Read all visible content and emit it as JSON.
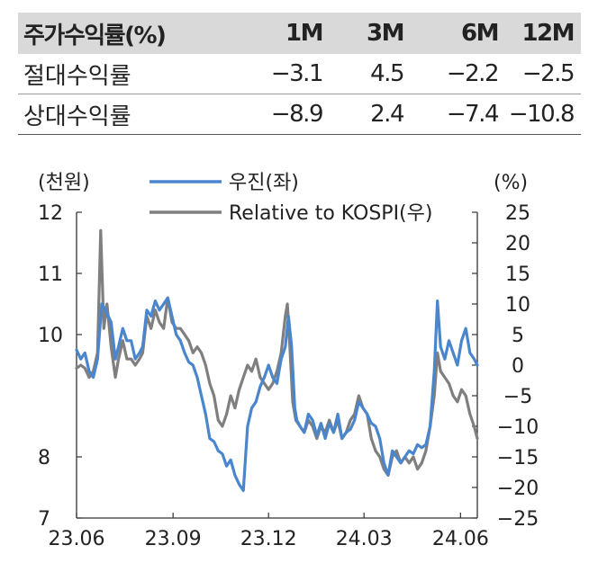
{
  "table": {
    "header": [
      "주가수익률(%)",
      "1M",
      "3M",
      "6M",
      "12M"
    ],
    "rows": [
      {
        "label": "절대수익률",
        "values": [
          "−3.1",
          "4.5",
          "−2.2",
          "−2.5"
        ]
      },
      {
        "label": "상대수익률",
        "values": [
          "−8.9",
          "2.4",
          "−7.4",
          "−10.8"
        ]
      }
    ]
  },
  "chart_data": {
    "type": "line",
    "y_left_unit": "(천원)",
    "y_right_unit": "(%)",
    "y_left_range": [
      7,
      12
    ],
    "y_left_ticks": [
      7,
      8,
      10,
      11,
      12
    ],
    "y_right_range": [
      -25,
      25
    ],
    "y_right_ticks": [
      "25",
      "20",
      "15",
      "10",
      "5",
      "0",
      "-5",
      "-10",
      "-15",
      "-20",
      "-25"
    ],
    "x_range": [
      "2023-06-01",
      "2024-06-17"
    ],
    "x_ticks": [
      {
        "date": "2023-06-01",
        "label": "23.06"
      },
      {
        "date": "2023-09-01",
        "label": "23.09"
      },
      {
        "date": "2023-12-01",
        "label": "23.12"
      },
      {
        "date": "2024-03-01",
        "label": "24.03"
      },
      {
        "date": "2024-06-01",
        "label": "24.06"
      }
    ],
    "legend_position": "top-center",
    "colors": {
      "price": "#4a86cd",
      "relative": "#7f7f7f"
    },
    "series": [
      {
        "name": "우진(좌)",
        "axis": "left",
        "points": [
          [
            "2023-06-01",
            9.75
          ],
          [
            "2023-06-05",
            9.6
          ],
          [
            "2023-06-09",
            9.7
          ],
          [
            "2023-06-13",
            9.4
          ],
          [
            "2023-06-17",
            9.3
          ],
          [
            "2023-06-21",
            9.6
          ],
          [
            "2023-06-25",
            10.5
          ],
          [
            "2023-06-27",
            10.45
          ],
          [
            "2023-06-30",
            10.35
          ],
          [
            "2023-07-04",
            10.2
          ],
          [
            "2023-07-08",
            9.6
          ],
          [
            "2023-07-11",
            9.8
          ],
          [
            "2023-07-15",
            10.1
          ],
          [
            "2023-07-19",
            9.9
          ],
          [
            "2023-07-23",
            9.9
          ],
          [
            "2023-07-27",
            9.6
          ],
          [
            "2023-07-31",
            9.7
          ],
          [
            "2023-08-03",
            9.8
          ],
          [
            "2023-08-07",
            10.4
          ],
          [
            "2023-08-11",
            10.3
          ],
          [
            "2023-08-15",
            10.55
          ],
          [
            "2023-08-19",
            10.4
          ],
          [
            "2023-08-23",
            10.5
          ],
          [
            "2023-08-27",
            10.6
          ],
          [
            "2023-08-31",
            10.3
          ],
          [
            "2023-09-04",
            10.0
          ],
          [
            "2023-09-08",
            9.9
          ],
          [
            "2023-09-12",
            9.7
          ],
          [
            "2023-09-16",
            9.55
          ],
          [
            "2023-09-20",
            9.5
          ],
          [
            "2023-09-24",
            9.3
          ],
          [
            "2023-09-28",
            9.0
          ],
          [
            "2023-10-02",
            8.7
          ],
          [
            "2023-10-06",
            8.3
          ],
          [
            "2023-10-10",
            8.25
          ],
          [
            "2023-10-14",
            8.1
          ],
          [
            "2023-10-18",
            8.05
          ],
          [
            "2023-10-22",
            7.85
          ],
          [
            "2023-10-26",
            7.95
          ],
          [
            "2023-10-30",
            7.7
          ],
          [
            "2023-11-03",
            7.55
          ],
          [
            "2023-11-07",
            7.45
          ],
          [
            "2023-11-11",
            8.5
          ],
          [
            "2023-11-15",
            8.8
          ],
          [
            "2023-11-19",
            8.9
          ],
          [
            "2023-11-23",
            9.15
          ],
          [
            "2023-11-27",
            9.3
          ],
          [
            "2023-12-01",
            9.5
          ],
          [
            "2023-12-05",
            9.3
          ],
          [
            "2023-12-09",
            9.2
          ],
          [
            "2023-12-13",
            9.6
          ],
          [
            "2023-12-17",
            9.8
          ],
          [
            "2023-12-20",
            10.3
          ],
          [
            "2023-12-23",
            9.8
          ],
          [
            "2023-12-26",
            8.8
          ],
          [
            "2023-12-28",
            8.6
          ],
          [
            "2023-12-31",
            8.5
          ],
          [
            "2024-01-04",
            8.4
          ],
          [
            "2024-01-08",
            8.7
          ],
          [
            "2024-01-12",
            8.6
          ],
          [
            "2024-01-16",
            8.35
          ],
          [
            "2024-01-20",
            8.55
          ],
          [
            "2024-01-24",
            8.3
          ],
          [
            "2024-01-28",
            8.55
          ],
          [
            "2024-02-01",
            8.4
          ],
          [
            "2024-02-05",
            8.7
          ],
          [
            "2024-02-09",
            8.3
          ],
          [
            "2024-02-13",
            8.4
          ],
          [
            "2024-02-17",
            8.45
          ],
          [
            "2024-02-21",
            8.6
          ],
          [
            "2024-02-25",
            8.9
          ],
          [
            "2024-02-29",
            8.8
          ],
          [
            "2024-03-04",
            8.7
          ],
          [
            "2024-03-08",
            8.55
          ],
          [
            "2024-03-12",
            8.5
          ],
          [
            "2024-03-16",
            8.3
          ],
          [
            "2024-03-20",
            7.9
          ],
          [
            "2024-03-24",
            7.7
          ],
          [
            "2024-03-28",
            8.1
          ],
          [
            "2024-04-01",
            8.0
          ],
          [
            "2024-04-05",
            7.9
          ],
          [
            "2024-04-09",
            8.0
          ],
          [
            "2024-04-13",
            8.1
          ],
          [
            "2024-04-17",
            8.05
          ],
          [
            "2024-04-21",
            8.2
          ],
          [
            "2024-04-25",
            8.15
          ],
          [
            "2024-04-29",
            8.2
          ],
          [
            "2024-05-03",
            8.5
          ],
          [
            "2024-05-07",
            9.4
          ],
          [
            "2024-05-10",
            10.55
          ],
          [
            "2024-05-13",
            9.8
          ],
          [
            "2024-05-17",
            9.6
          ],
          [
            "2024-05-21",
            9.9
          ],
          [
            "2024-05-25",
            9.7
          ],
          [
            "2024-05-29",
            9.5
          ],
          [
            "2024-06-02",
            9.9
          ],
          [
            "2024-06-06",
            10.1
          ],
          [
            "2024-06-10",
            9.7
          ],
          [
            "2024-06-14",
            9.6
          ],
          [
            "2024-06-17",
            9.5
          ]
        ]
      },
      {
        "name": "Relative to KOSPI(우)",
        "axis": "right",
        "points": [
          [
            "2023-06-01",
            -0.5
          ],
          [
            "2023-06-05",
            0
          ],
          [
            "2023-06-09",
            -0.5
          ],
          [
            "2023-06-13",
            -2
          ],
          [
            "2023-06-17",
            -1
          ],
          [
            "2023-06-21",
            2
          ],
          [
            "2023-06-24",
            22
          ],
          [
            "2023-06-27",
            6
          ],
          [
            "2023-06-30",
            10
          ],
          [
            "2023-07-04",
            3
          ],
          [
            "2023-07-08",
            -2
          ],
          [
            "2023-07-11",
            1
          ],
          [
            "2023-07-15",
            4
          ],
          [
            "2023-07-19",
            1
          ],
          [
            "2023-07-23",
            1
          ],
          [
            "2023-07-27",
            0
          ],
          [
            "2023-07-31",
            1
          ],
          [
            "2023-08-03",
            2
          ],
          [
            "2023-08-07",
            8
          ],
          [
            "2023-08-11",
            6
          ],
          [
            "2023-08-15",
            9
          ],
          [
            "2023-08-19",
            7
          ],
          [
            "2023-08-23",
            6
          ],
          [
            "2023-08-27",
            11
          ],
          [
            "2023-08-31",
            7
          ],
          [
            "2023-09-04",
            6
          ],
          [
            "2023-09-08",
            6
          ],
          [
            "2023-09-12",
            5
          ],
          [
            "2023-09-16",
            4
          ],
          [
            "2023-09-20",
            2
          ],
          [
            "2023-09-24",
            3
          ],
          [
            "2023-09-28",
            2
          ],
          [
            "2023-10-02",
            0
          ],
          [
            "2023-10-06",
            -3
          ],
          [
            "2023-10-10",
            -5
          ],
          [
            "2023-10-14",
            -9
          ],
          [
            "2023-10-18",
            -10
          ],
          [
            "2023-10-22",
            -8
          ],
          [
            "2023-10-26",
            -5
          ],
          [
            "2023-10-30",
            -7
          ],
          [
            "2023-11-03",
            -4
          ],
          [
            "2023-11-07",
            -2
          ],
          [
            "2023-11-11",
            0
          ],
          [
            "2023-11-15",
            -1
          ],
          [
            "2023-11-19",
            1
          ],
          [
            "2023-11-23",
            -2
          ],
          [
            "2023-11-27",
            -3
          ],
          [
            "2023-12-01",
            -4
          ],
          [
            "2023-12-05",
            -3
          ],
          [
            "2023-12-09",
            -1
          ],
          [
            "2023-12-13",
            2
          ],
          [
            "2023-12-17",
            8
          ],
          [
            "2023-12-19",
            10
          ],
          [
            "2023-12-21",
            4
          ],
          [
            "2023-12-24",
            -6
          ],
          [
            "2023-12-27",
            -9
          ],
          [
            "2023-12-31",
            -10
          ],
          [
            "2024-01-04",
            -11
          ],
          [
            "2024-01-08",
            -9
          ],
          [
            "2024-01-12",
            -10
          ],
          [
            "2024-01-16",
            -12
          ],
          [
            "2024-01-20",
            -10
          ],
          [
            "2024-01-24",
            -11
          ],
          [
            "2024-01-28",
            -9
          ],
          [
            "2024-02-01",
            -11
          ],
          [
            "2024-02-05",
            -9
          ],
          [
            "2024-02-09",
            -12
          ],
          [
            "2024-02-13",
            -11
          ],
          [
            "2024-02-17",
            -9
          ],
          [
            "2024-02-21",
            -8
          ],
          [
            "2024-02-25",
            -5
          ],
          [
            "2024-02-29",
            -7
          ],
          [
            "2024-03-04",
            -8
          ],
          [
            "2024-03-08",
            -12
          ],
          [
            "2024-03-12",
            -14
          ],
          [
            "2024-03-16",
            -15
          ],
          [
            "2024-03-20",
            -17
          ],
          [
            "2024-03-24",
            -18
          ],
          [
            "2024-03-28",
            -15
          ],
          [
            "2024-04-01",
            -14
          ],
          [
            "2024-04-05",
            -16
          ],
          [
            "2024-04-09",
            -15
          ],
          [
            "2024-04-13",
            -16
          ],
          [
            "2024-04-17",
            -15
          ],
          [
            "2024-04-21",
            -17
          ],
          [
            "2024-04-25",
            -16
          ],
          [
            "2024-04-29",
            -14
          ],
          [
            "2024-05-03",
            -10
          ],
          [
            "2024-05-07",
            -5
          ],
          [
            "2024-05-10",
            2
          ],
          [
            "2024-05-13",
            -1
          ],
          [
            "2024-05-17",
            -2
          ],
          [
            "2024-05-21",
            -3
          ],
          [
            "2024-05-25",
            -5
          ],
          [
            "2024-05-29",
            -6
          ],
          [
            "2024-06-02",
            -4
          ],
          [
            "2024-06-06",
            -5
          ],
          [
            "2024-06-10",
            -8
          ],
          [
            "2024-06-14",
            -10
          ],
          [
            "2024-06-17",
            -12
          ]
        ]
      }
    ]
  }
}
